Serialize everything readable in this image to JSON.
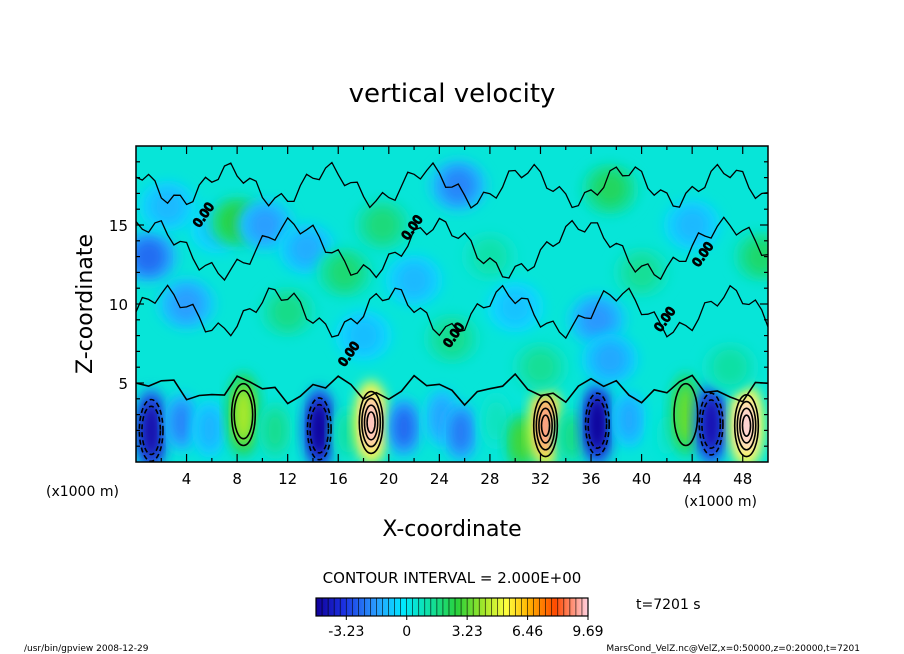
{
  "chart_data": {
    "type": "heatmap",
    "title": "vertical velocity",
    "xlabel": "X-coordinate",
    "ylabel": "Z-coordinate",
    "x_unit_label_left": "(x1000 m)",
    "x_unit_label_right": "(x1000 m)",
    "y_unit_label": "(x1000 m)",
    "xlim": [
      0,
      50
    ],
    "ylim": [
      0,
      20
    ],
    "x_ticks": [
      "4",
      "8",
      "12",
      "16",
      "20",
      "24",
      "28",
      "32",
      "36",
      "40",
      "44",
      "48"
    ],
    "y_ticks": [
      "5",
      "10",
      "15"
    ],
    "contour_interval_text": "CONTOUR INTERVAL = 2.000E+00",
    "colorbar": {
      "min": -4.85,
      "max": 9.69,
      "tick_labels": [
        "-3.23",
        "0",
        "3.23",
        "6.46",
        "9.69"
      ],
      "tick_values": [
        -3.23,
        0,
        3.23,
        6.46,
        9.69
      ]
    },
    "contour_label": "0.00",
    "time_label": "t=7201 s",
    "footer_left": "/usr/bin/gpview   2008-12-29",
    "footer_right": "MarsCond_VelZ.nc@VelZ,x=0:50000,z=0:20000,t=7201",
    "background_value": 0.4,
    "cells": [
      {
        "x": 1.2,
        "z": 2.0,
        "value": -4.5
      },
      {
        "x": 3.6,
        "z": 2.5,
        "value": -2.0
      },
      {
        "x": 5.8,
        "z": 2.1,
        "value": -1.2
      },
      {
        "x": 8.5,
        "z": 3.0,
        "value": 4.2
      },
      {
        "x": 11.0,
        "z": 2.0,
        "value": 1.5
      },
      {
        "x": 14.5,
        "z": 2.1,
        "value": -4.8
      },
      {
        "x": 16.8,
        "z": 1.8,
        "value": 1.2
      },
      {
        "x": 18.6,
        "z": 2.5,
        "value": 9.5
      },
      {
        "x": 21.2,
        "z": 2.2,
        "value": -2.5
      },
      {
        "x": 24.2,
        "z": 2.8,
        "value": -1.5
      },
      {
        "x": 25.7,
        "z": 1.9,
        "value": -2.2
      },
      {
        "x": 28.5,
        "z": 2.6,
        "value": 0.8
      },
      {
        "x": 30.5,
        "z": 1.3,
        "value": 3.0
      },
      {
        "x": 32.4,
        "z": 2.3,
        "value": 9.0
      },
      {
        "x": 34.5,
        "z": 1.6,
        "value": 1.6
      },
      {
        "x": 36.5,
        "z": 2.4,
        "value": -4.9
      },
      {
        "x": 39.0,
        "z": 2.7,
        "value": -1.4
      },
      {
        "x": 42.0,
        "z": 1.7,
        "value": 0.6
      },
      {
        "x": 43.5,
        "z": 3.0,
        "value": 3.4
      },
      {
        "x": 45.5,
        "z": 2.4,
        "value": -4.4
      },
      {
        "x": 48.3,
        "z": 2.3,
        "value": 9.69
      },
      {
        "x": 1.0,
        "z": 13.0,
        "value": -2.4
      },
      {
        "x": 2.5,
        "z": 16.2,
        "value": -1.1
      },
      {
        "x": 4.0,
        "z": 10.0,
        "value": -1.6
      },
      {
        "x": 6.5,
        "z": 14.8,
        "value": -0.9
      },
      {
        "x": 8.0,
        "z": 15.2,
        "value": 2.7
      },
      {
        "x": 10.2,
        "z": 15.0,
        "value": -1.6
      },
      {
        "x": 12.0,
        "z": 9.5,
        "value": 1.6
      },
      {
        "x": 13.5,
        "z": 13.5,
        "value": -1.3
      },
      {
        "x": 16.5,
        "z": 12.0,
        "value": 1.9
      },
      {
        "x": 18.0,
        "z": 8.0,
        "value": -1.0
      },
      {
        "x": 19.5,
        "z": 15.0,
        "value": 1.8
      },
      {
        "x": 22.0,
        "z": 11.5,
        "value": -1.1
      },
      {
        "x": 25.5,
        "z": 17.5,
        "value": -2.0
      },
      {
        "x": 25.0,
        "z": 7.8,
        "value": 1.5
      },
      {
        "x": 28.0,
        "z": 13.0,
        "value": 1.1
      },
      {
        "x": 30.0,
        "z": 9.8,
        "value": -0.9
      },
      {
        "x": 32.0,
        "z": 6.0,
        "value": 1.4
      },
      {
        "x": 36.5,
        "z": 9.0,
        "value": -1.7
      },
      {
        "x": 37.5,
        "z": 17.0,
        "value": 0.9
      },
      {
        "x": 37.5,
        "z": 6.5,
        "value": -1.4
      },
      {
        "x": 40.0,
        "z": 12.0,
        "value": 1.4
      },
      {
        "x": 44.0,
        "z": 15.0,
        "value": -1.1
      },
      {
        "x": 47.0,
        "z": 6.0,
        "value": 1.2
      },
      {
        "x": 49.5,
        "z": 13.0,
        "value": 2.0
      },
      {
        "x": 37.5,
        "z": 17.3,
        "value": 2.2
      }
    ]
  }
}
